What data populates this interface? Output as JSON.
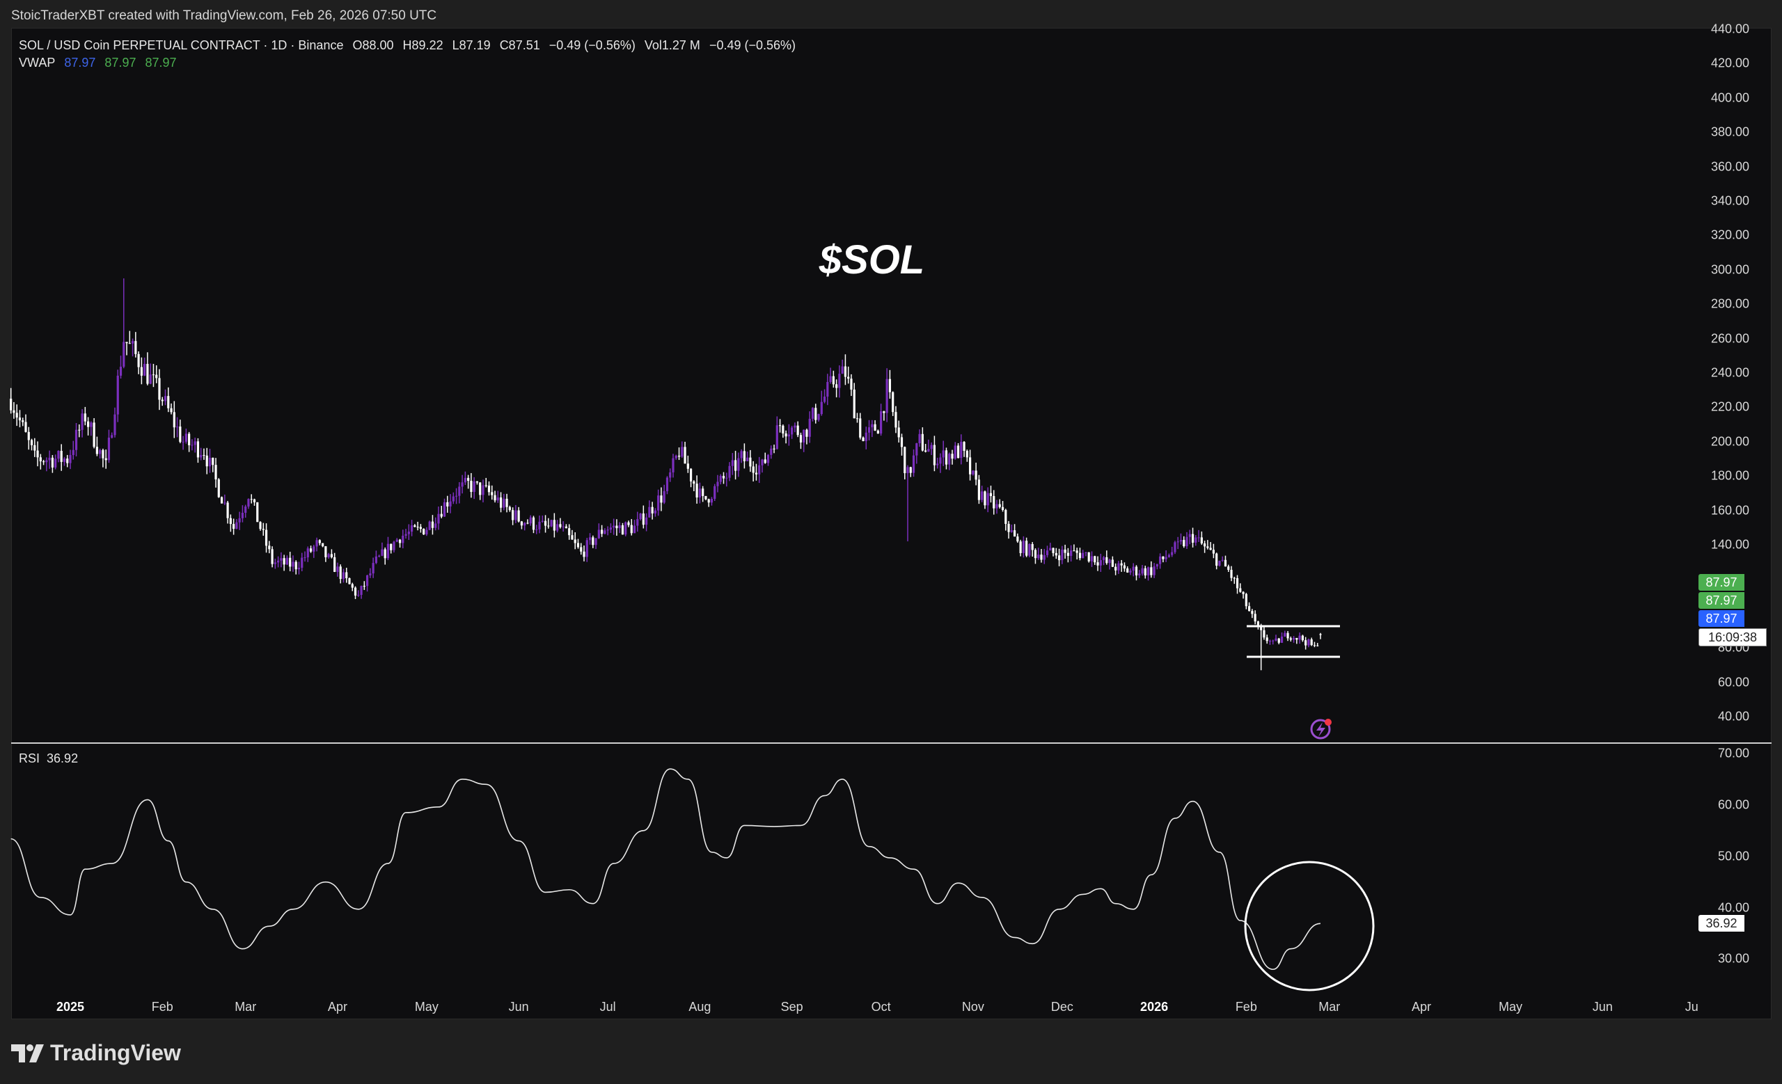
{
  "header": {
    "credit": "StoicTraderXBT created with TradingView.com, Feb 26, 2026 07:50 UTC"
  },
  "legend": {
    "symbol": "SOL / USD Coin PERPETUAL CONTRACT · 1D · Binance",
    "open": "O88.00",
    "high": "H89.22",
    "low": "L87.19",
    "close": "C87.51",
    "change": "−0.49 (−0.56%)",
    "volume": "Vol1.27 M",
    "change2": "−0.49 (−0.56%)",
    "vwap_label": "VWAP",
    "vwap_values": [
      "87.97",
      "87.97",
      "87.97"
    ]
  },
  "annotation": {
    "title": "$SOL"
  },
  "price_axis": {
    "ticks": [
      "440.00",
      "420.00",
      "400.00",
      "380.00",
      "360.00",
      "340.00",
      "320.00",
      "300.00",
      "280.00",
      "260.00",
      "240.00",
      "220.00",
      "200.00",
      "180.00",
      "160.00",
      "140.00",
      "80.00",
      "60.00",
      "40.00"
    ],
    "badges": [
      {
        "text": "87.97",
        "color": "#4caf50"
      },
      {
        "text": "87.97",
        "color": "#4caf50"
      },
      {
        "text": "87.97",
        "color": "#2962ff"
      },
      {
        "text": "16:09:38",
        "color": "#ffffff"
      }
    ]
  },
  "rsi": {
    "label": "RSI",
    "value": "36.92",
    "ticks": [
      "70.00",
      "60.00",
      "50.00",
      "40.00",
      "30.00"
    ]
  },
  "time_axis": {
    "labels": [
      {
        "text": "2025",
        "date": "2025-01-01",
        "year": true
      },
      {
        "text": "Feb",
        "date": "2025-02-01"
      },
      {
        "text": "Mar",
        "date": "2025-03-01"
      },
      {
        "text": "Apr",
        "date": "2025-04-01"
      },
      {
        "text": "May",
        "date": "2025-05-01"
      },
      {
        "text": "Jun",
        "date": "2025-06-01"
      },
      {
        "text": "Jul",
        "date": "2025-07-01"
      },
      {
        "text": "Aug",
        "date": "2025-08-01"
      },
      {
        "text": "Sep",
        "date": "2025-09-01"
      },
      {
        "text": "Oct",
        "date": "2025-10-01"
      },
      {
        "text": "Nov",
        "date": "2025-11-01"
      },
      {
        "text": "Dec",
        "date": "2025-12-01"
      },
      {
        "text": "2026",
        "date": "2026-01-01",
        "year": true
      },
      {
        "text": "Feb",
        "date": "2026-02-01"
      },
      {
        "text": "Mar",
        "date": "2026-03-01"
      },
      {
        "text": "Apr",
        "date": "2026-04-01"
      },
      {
        "text": "May",
        "date": "2026-05-01"
      },
      {
        "text": "Jun",
        "date": "2026-06-01"
      },
      {
        "text": "Ju",
        "date": "2026-07-01"
      }
    ]
  },
  "brand": {
    "name": "TradingView"
  },
  "colors": {
    "up": "#7b2fbe",
    "down": "#ffffff",
    "background": "#0e0e10",
    "rsi_line": "#e8e8e8"
  },
  "chart_data": [
    {
      "type": "candlestick",
      "title": "SOL / USD Coin PERPETUAL CONTRACT · 1D · Binance",
      "ylim": [
        40,
        440
      ],
      "approx_close": [
        [
          "2024-12-12",
          225
        ],
        [
          "2024-12-20",
          190
        ],
        [
          "2024-12-31",
          190
        ],
        [
          "2025-01-06",
          215
        ],
        [
          "2025-01-13",
          185
        ],
        [
          "2025-01-19",
          260
        ],
        [
          "2025-01-25",
          245
        ],
        [
          "2025-02-01",
          225
        ],
        [
          "2025-02-08",
          200
        ],
        [
          "2025-02-15",
          195
        ],
        [
          "2025-02-25",
          150
        ],
        [
          "2025-03-02",
          170
        ],
        [
          "2025-03-10",
          130
        ],
        [
          "2025-03-18",
          128
        ],
        [
          "2025-03-25",
          140
        ],
        [
          "2025-04-01",
          125
        ],
        [
          "2025-04-08",
          110
        ],
        [
          "2025-04-14",
          130
        ],
        [
          "2025-04-22",
          145
        ],
        [
          "2025-05-01",
          150
        ],
        [
          "2025-05-10",
          170
        ],
        [
          "2025-05-15",
          175
        ],
        [
          "2025-05-22",
          170
        ],
        [
          "2025-06-01",
          155
        ],
        [
          "2025-06-10",
          150
        ],
        [
          "2025-06-15",
          150
        ],
        [
          "2025-06-22",
          135
        ],
        [
          "2025-06-30",
          150
        ],
        [
          "2025-07-10",
          150
        ],
        [
          "2025-07-20",
          170
        ],
        [
          "2025-07-25",
          195
        ],
        [
          "2025-08-02",
          165
        ],
        [
          "2025-08-10",
          180
        ],
        [
          "2025-08-15",
          190
        ],
        [
          "2025-08-22",
          185
        ],
        [
          "2025-08-28",
          210
        ],
        [
          "2025-09-05",
          205
        ],
        [
          "2025-09-15",
          235
        ],
        [
          "2025-09-19",
          240
        ],
        [
          "2025-09-25",
          200
        ],
        [
          "2025-09-30",
          210
        ],
        [
          "2025-10-03",
          230
        ],
        [
          "2025-10-10",
          180
        ],
        [
          "2025-10-14",
          200
        ],
        [
          "2025-10-20",
          190
        ],
        [
          "2025-10-28",
          195
        ],
        [
          "2025-11-03",
          170
        ],
        [
          "2025-11-10",
          160
        ],
        [
          "2025-11-16",
          140
        ],
        [
          "2025-11-22",
          135
        ],
        [
          "2025-12-01",
          135
        ],
        [
          "2025-12-08",
          135
        ],
        [
          "2025-12-15",
          130
        ],
        [
          "2025-12-22",
          125
        ],
        [
          "2025-12-31",
          125
        ],
        [
          "2026-01-06",
          135
        ],
        [
          "2026-01-14",
          145
        ],
        [
          "2026-01-20",
          135
        ],
        [
          "2026-01-26",
          125
        ],
        [
          "2026-02-01",
          105
        ],
        [
          "2026-02-05",
          90
        ],
        [
          "2026-02-10",
          82
        ],
        [
          "2026-02-15",
          88
        ],
        [
          "2026-02-20",
          85
        ],
        [
          "2026-02-24",
          80
        ],
        [
          "2026-02-26",
          87.51
        ]
      ],
      "notable_wicks": [
        [
          "2025-01-19",
          "high",
          295
        ],
        [
          "2025-10-10",
          "low",
          142
        ],
        [
          "2026-02-06",
          "low",
          67
        ]
      ],
      "last": {
        "open": 88.0,
        "high": 89.22,
        "low": 87.19,
        "close": 87.51
      }
    },
    {
      "type": "line",
      "title": "RSI",
      "ylim": [
        25,
        72
      ],
      "points": [
        [
          "2024-12-12",
          53.4
        ],
        [
          "2024-12-22",
          42
        ],
        [
          "2025-01-01",
          38.6
        ],
        [
          "2025-01-06",
          47.5
        ],
        [
          "2025-01-15",
          48.6
        ],
        [
          "2025-01-27",
          61
        ],
        [
          "2025-02-03",
          53
        ],
        [
          "2025-02-09",
          45
        ],
        [
          "2025-02-18",
          39.7
        ],
        [
          "2025-02-28",
          32
        ],
        [
          "2025-03-09",
          36.4
        ],
        [
          "2025-03-17",
          39.7
        ],
        [
          "2025-03-28",
          45
        ],
        [
          "2025-04-08",
          39.7
        ],
        [
          "2025-04-18",
          48.6
        ],
        [
          "2025-04-24",
          58.5
        ],
        [
          "2025-05-05",
          59.6
        ],
        [
          "2025-05-13",
          65
        ],
        [
          "2025-05-21",
          64
        ],
        [
          "2025-06-01",
          53
        ],
        [
          "2025-06-10",
          43
        ],
        [
          "2025-06-18",
          43.5
        ],
        [
          "2025-06-26",
          40.8
        ],
        [
          "2025-07-03",
          48.6
        ],
        [
          "2025-07-13",
          55
        ],
        [
          "2025-07-22",
          67
        ],
        [
          "2025-07-28",
          65
        ],
        [
          "2025-08-05",
          50.8
        ],
        [
          "2025-08-10",
          49.7
        ],
        [
          "2025-08-16",
          56
        ],
        [
          "2025-08-26",
          55.8
        ],
        [
          "2025-09-04",
          56
        ],
        [
          "2025-09-12",
          61.8
        ],
        [
          "2025-09-18",
          65
        ],
        [
          "2025-09-27",
          51.9
        ],
        [
          "2025-10-04",
          49.7
        ],
        [
          "2025-10-12",
          47.5
        ],
        [
          "2025-10-20",
          40.8
        ],
        [
          "2025-10-27",
          44.8
        ],
        [
          "2025-11-04",
          42
        ],
        [
          "2025-11-15",
          34.2
        ],
        [
          "2025-11-21",
          33
        ],
        [
          "2025-11-30",
          39.7
        ],
        [
          "2025-12-08",
          42.6
        ],
        [
          "2025-12-14",
          43.7
        ],
        [
          "2025-12-19",
          40.8
        ],
        [
          "2025-12-25",
          39.7
        ],
        [
          "2025-12-31",
          46.4
        ],
        [
          "2026-01-08",
          57.4
        ],
        [
          "2026-01-14",
          60.7
        ],
        [
          "2026-01-23",
          50.8
        ],
        [
          "2026-01-30",
          37.5
        ],
        [
          "2026-02-10",
          28
        ],
        [
          "2026-02-16",
          32
        ],
        [
          "2026-02-26",
          36.92
        ]
      ]
    }
  ]
}
